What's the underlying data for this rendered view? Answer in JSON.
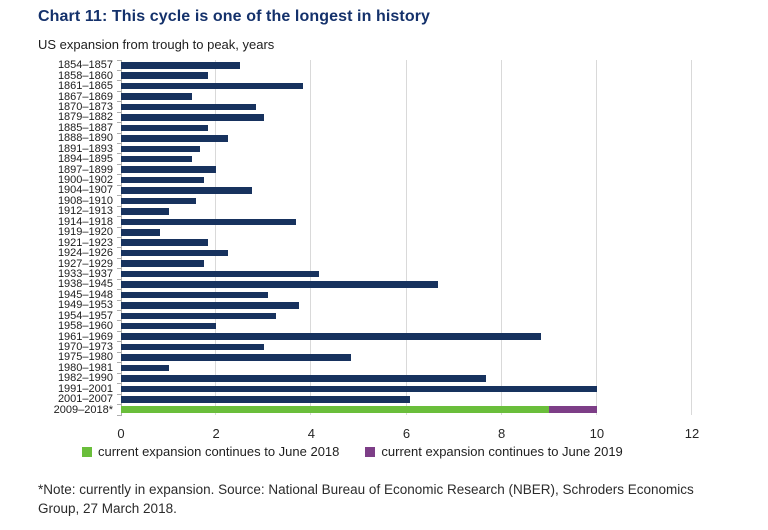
{
  "title": "Chart 11: This cycle is one of the longest in history",
  "subtitle": "US expansion from trough to peak, years",
  "footnote": "*Note: currently in expansion. Source: National Bureau of Economic Research (NBER), Schroders Economics Group, 27 March 2018.",
  "colors": {
    "title_navy": "#14316b",
    "bar_navy": "#17325e",
    "expansion_green": "#6abe3b",
    "expansion_purple": "#7d3e87",
    "gridline": "#d9d9d9",
    "axis": "#aeaeae"
  },
  "legend": [
    {
      "color": "#6abe3b",
      "label": "current expansion continues to June 2018"
    },
    {
      "color": "#7d3e87",
      "label": "current expansion continues to June 2019"
    }
  ],
  "chart_data": {
    "type": "bar",
    "orientation": "horizontal",
    "title": "Chart 11: This cycle is one of the longest in history",
    "subtitle": "US expansion from trough to peak, years",
    "xlabel": "",
    "ylabel": "US expansion from trough to peak, years",
    "xlim": [
      0,
      12
    ],
    "xticks": [
      0,
      2,
      4,
      6,
      8,
      10,
      12
    ],
    "grid": "vertical-only",
    "legend_position": "bottom",
    "bar_color": "#17325e",
    "bars": [
      {
        "label": "1854–1857",
        "value": 2.5
      },
      {
        "label": "1858–1860",
        "value": 1.83
      },
      {
        "label": "1861–1865",
        "value": 3.83
      },
      {
        "label": "1867–1869",
        "value": 1.5
      },
      {
        "label": "1870–1873",
        "value": 2.83
      },
      {
        "label": "1879–1882",
        "value": 3.0
      },
      {
        "label": "1885–1887",
        "value": 1.83
      },
      {
        "label": "1888–1890",
        "value": 2.25
      },
      {
        "label": "1891–1893",
        "value": 1.67
      },
      {
        "label": "1894–1895",
        "value": 1.5
      },
      {
        "label": "1897–1899",
        "value": 2.0
      },
      {
        "label": "1900–1902",
        "value": 1.75
      },
      {
        "label": "1904–1907",
        "value": 2.75
      },
      {
        "label": "1908–1910",
        "value": 1.58
      },
      {
        "label": "1912–1913",
        "value": 1.0
      },
      {
        "label": "1914–1918",
        "value": 3.67
      },
      {
        "label": "1919–1920",
        "value": 0.83
      },
      {
        "label": "1921–1923",
        "value": 1.83
      },
      {
        "label": "1924–1926",
        "value": 2.25
      },
      {
        "label": "1927–1929",
        "value": 1.75
      },
      {
        "label": "1933–1937",
        "value": 4.17
      },
      {
        "label": "1938–1945",
        "value": 6.67
      },
      {
        "label": "1945–1948",
        "value": 3.08
      },
      {
        "label": "1949–1953",
        "value": 3.75
      },
      {
        "label": "1954–1957",
        "value": 3.25
      },
      {
        "label": "1958–1960",
        "value": 2.0
      },
      {
        "label": "1961–1969",
        "value": 8.83
      },
      {
        "label": "1970–1973",
        "value": 3.0
      },
      {
        "label": "1975–1980",
        "value": 4.83
      },
      {
        "label": "1980–1981",
        "value": 1.0
      },
      {
        "label": "1982–1990",
        "value": 7.67
      },
      {
        "label": "1991–2001",
        "value": 10.0
      },
      {
        "label": "2001–2007",
        "value": 6.08
      },
      {
        "label": "2009–2018*",
        "segments": [
          {
            "value": 9.0,
            "color": "#6abe3b",
            "name": "current expansion continues to June 2018"
          },
          {
            "value": 1.0,
            "color": "#7d3e87",
            "name": "current expansion continues to June 2019"
          }
        ]
      }
    ]
  }
}
